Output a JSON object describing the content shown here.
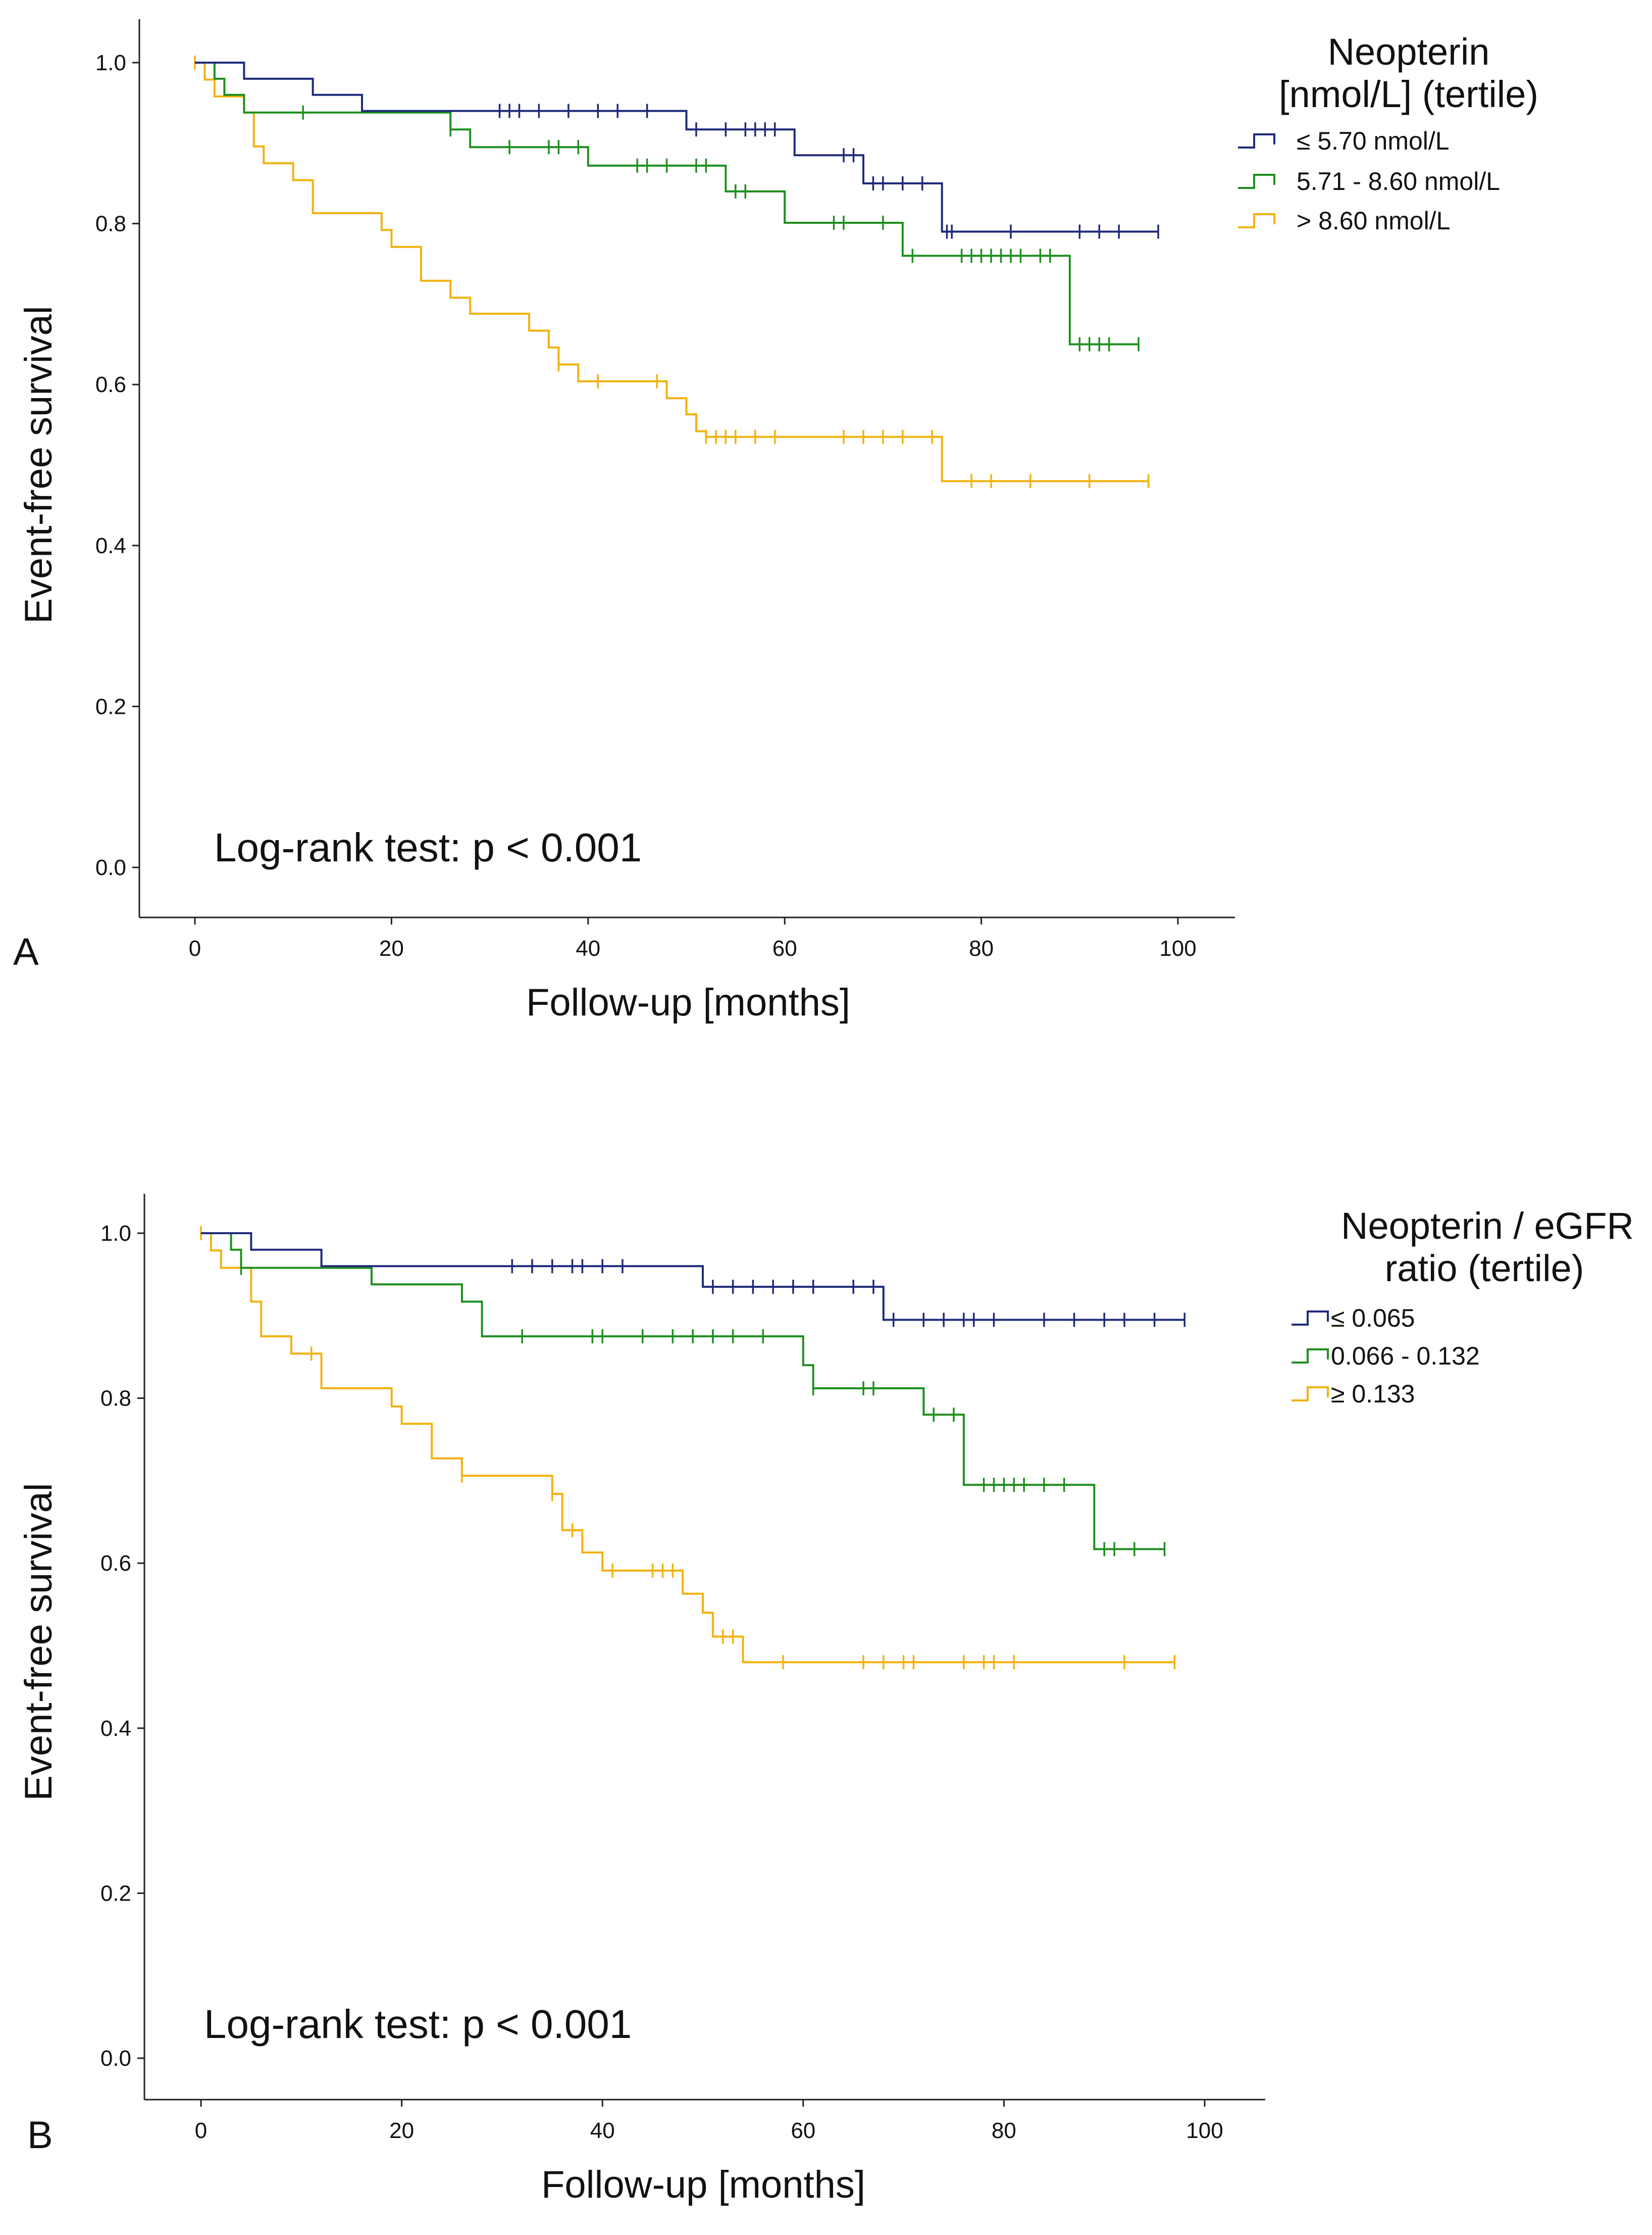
{
  "chart_data": [
    {
      "type": "line",
      "subtype": "kaplan-meier",
      "panel_label": "A",
      "xlabel": "Follow-up [months]",
      "ylabel": "Event-free survival",
      "xlim": [
        -5,
        105
      ],
      "ylim": [
        -0.05,
        1.05
      ],
      "x_ticks": [
        0,
        20,
        40,
        60,
        80,
        100
      ],
      "y_ticks": [
        0.0,
        0.2,
        0.4,
        0.6,
        0.8,
        1.0
      ],
      "y_tick_labels": [
        "0.0",
        "0.2",
        "0.4",
        "0.6",
        "0.8",
        "1.0"
      ],
      "legend_title": [
        "Neopterin",
        "[nmol/L] (tertile)"
      ],
      "legend_position": "top-right",
      "annotation": "Log-rank test: p < 0.001",
      "series": [
        {
          "name": "≤ 5.70 nmol/L",
          "color": "#1F2A7A",
          "steps": [
            [
              0,
              1.0
            ],
            [
              5,
              0.98
            ],
            [
              12,
              0.96
            ],
            [
              17,
              0.94
            ],
            [
              50,
              0.917
            ],
            [
              61,
              0.885
            ],
            [
              68,
              0.85
            ],
            [
              76,
              0.79
            ],
            [
              98,
              0.79
            ]
          ],
          "censored": [
            31,
            32,
            33,
            35,
            38,
            41,
            43,
            46,
            51,
            54,
            56,
            57,
            58,
            59,
            66,
            67,
            69,
            70,
            72,
            74,
            76.5,
            77,
            83,
            90,
            92,
            94,
            98
          ]
        },
        {
          "name": "5.71 - 8.60 nmol/L",
          "color": "#1E8F1E",
          "steps": [
            [
              0,
              1.0
            ],
            [
              2,
              0.98
            ],
            [
              3,
              0.96
            ],
            [
              5,
              0.938
            ],
            [
              26,
              0.917
            ],
            [
              28,
              0.895
            ],
            [
              40,
              0.872
            ],
            [
              54,
              0.84
            ],
            [
              60,
              0.801
            ],
            [
              72,
              0.76
            ],
            [
              89,
              0.65
            ],
            [
              96,
              0.65
            ]
          ],
          "censored": [
            11,
            26,
            32,
            36,
            37,
            39,
            45,
            46,
            48,
            51,
            52,
            55,
            56,
            65,
            66,
            70,
            73,
            78,
            79,
            80,
            81,
            82,
            83,
            84,
            86,
            87,
            90,
            91,
            92,
            93,
            96
          ]
        },
        {
          "name": "> 8.60 nmol/L",
          "color": "#F2B20E",
          "steps": [
            [
              0,
              1.0
            ],
            [
              1,
              0.979
            ],
            [
              2,
              0.958
            ],
            [
              5,
              0.938
            ],
            [
              6,
              0.896
            ],
            [
              7,
              0.875
            ],
            [
              10,
              0.854
            ],
            [
              12,
              0.813
            ],
            [
              19,
              0.792
            ],
            [
              20,
              0.771
            ],
            [
              23,
              0.729
            ],
            [
              26,
              0.708
            ],
            [
              28,
              0.688
            ],
            [
              34,
              0.667
            ],
            [
              36,
              0.646
            ],
            [
              37,
              0.625
            ],
            [
              39,
              0.604
            ],
            [
              48,
              0.583
            ],
            [
              50,
              0.563
            ],
            [
              51,
              0.542
            ],
            [
              52,
              0.535
            ],
            [
              76,
              0.48
            ],
            [
              97,
              0.48
            ]
          ],
          "censored": [
            0,
            37,
            41,
            47,
            52,
            53,
            54,
            55,
            57,
            59,
            66,
            68,
            70,
            72,
            75,
            79,
            81,
            85,
            91,
            97
          ]
        }
      ]
    },
    {
      "type": "line",
      "subtype": "kaplan-meier",
      "panel_label": "B",
      "xlabel": "Follow-up [months]",
      "ylabel": "Event-free survival",
      "xlim": [
        -5,
        105
      ],
      "ylim": [
        -0.05,
        1.05
      ],
      "x_ticks": [
        0,
        20,
        40,
        60,
        80,
        100
      ],
      "y_ticks": [
        0.0,
        0.2,
        0.4,
        0.6,
        0.8,
        1.0
      ],
      "y_tick_labels": [
        "0.0",
        "0.2",
        "0.4",
        "0.6",
        "0.8",
        "1.0"
      ],
      "legend_title": [
        "Neopterin / eGFR",
        "ratio (tertile)"
      ],
      "legend_position": "top-right",
      "annotation": "Log-rank test: p < 0.001",
      "series": [
        {
          "name": "≤ 0.065",
          "color": "#1F2A7A",
          "steps": [
            [
              0,
              1.0
            ],
            [
              5,
              0.98
            ],
            [
              12,
              0.96
            ],
            [
              50,
              0.935
            ],
            [
              68,
              0.895
            ],
            [
              98,
              0.895
            ]
          ],
          "censored": [
            31,
            33,
            35,
            37,
            38,
            40,
            42,
            51,
            53,
            55,
            57,
            59,
            61,
            65,
            67,
            69,
            72,
            74,
            76,
            77,
            79,
            84,
            87,
            90,
            92,
            95,
            98
          ]
        },
        {
          "name": "0.066 - 0.132",
          "color": "#1E8F1E",
          "steps": [
            [
              0,
              1.0
            ],
            [
              3,
              0.98
            ],
            [
              4,
              0.958
            ],
            [
              17,
              0.938
            ],
            [
              26,
              0.917
            ],
            [
              28,
              0.875
            ],
            [
              60,
              0.84
            ],
            [
              61,
              0.812
            ],
            [
              72,
              0.78
            ],
            [
              76,
              0.695
            ],
            [
              89,
              0.617
            ],
            [
              96,
              0.617
            ]
          ],
          "censored": [
            4,
            32,
            39,
            40,
            44,
            47,
            49,
            51,
            53,
            56,
            61,
            66,
            67,
            73,
            75,
            78,
            79,
            80,
            81,
            82,
            84,
            86,
            90,
            91,
            93,
            96
          ]
        },
        {
          "name": "≥ 0.133",
          "color": "#F2B20E",
          "steps": [
            [
              0,
              1.0
            ],
            [
              1,
              0.979
            ],
            [
              2,
              0.958
            ],
            [
              5,
              0.917
            ],
            [
              6,
              0.875
            ],
            [
              9,
              0.854
            ],
            [
              12,
              0.812
            ],
            [
              19,
              0.79
            ],
            [
              20,
              0.769
            ],
            [
              23,
              0.727
            ],
            [
              26,
              0.706
            ],
            [
              35,
              0.684
            ],
            [
              36,
              0.64
            ],
            [
              38,
              0.613
            ],
            [
              40,
              0.591
            ],
            [
              48,
              0.563
            ],
            [
              50,
              0.54
            ],
            [
              51,
              0.511
            ],
            [
              54,
              0.48
            ],
            [
              97,
              0.48
            ]
          ],
          "censored": [
            0,
            11,
            26,
            35,
            37,
            41,
            45,
            46,
            47,
            52,
            53,
            58,
            66,
            68,
            70,
            71,
            76,
            78,
            79,
            81,
            92,
            97
          ]
        }
      ]
    }
  ]
}
